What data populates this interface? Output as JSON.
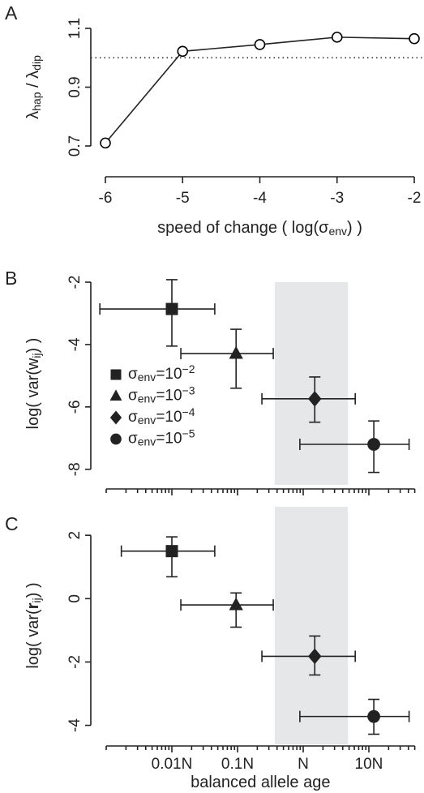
{
  "chart_data": [
    {
      "type": "line",
      "panel_label": "A",
      "x": [
        -6,
        -5,
        -4,
        -3,
        -2
      ],
      "values": [
        0.71,
        1.022,
        1.045,
        1.07,
        1.065
      ],
      "color": "#000000",
      "xlim": [
        -6,
        -2
      ],
      "xticks": [
        -6,
        -5,
        -4,
        -3,
        -2
      ],
      "ylim": [
        0.66,
        1.14
      ],
      "yticks": [
        0.7,
        0.9,
        1.1
      ],
      "reference_line": 1,
      "xlabel": [
        "speed of change ( log(σ",
        "env",
        ") )"
      ],
      "ylabel": [
        "λ",
        "hap",
        " / λ",
        "dip"
      ]
    },
    {
      "type": "scatter",
      "panel_label": "B",
      "log_x": true,
      "xlim": [
        0.001,
        50
      ],
      "xticks": [
        0.01,
        0.1,
        1,
        10
      ],
      "xminor_ticks": [
        0.001,
        0.002,
        0.003,
        0.004,
        0.005,
        0.006,
        0.007,
        0.008,
        0.009,
        0.02,
        0.03,
        0.04,
        0.05,
        0.06,
        0.07,
        0.08,
        0.09,
        0.2,
        0.3,
        0.4,
        0.5,
        0.6,
        0.7,
        0.8,
        0.9,
        2,
        3,
        4,
        5,
        6,
        7,
        8,
        9,
        20,
        30,
        40,
        50
      ],
      "ylim": [
        -8.5,
        -2
      ],
      "yticks": [
        -2,
        -4,
        -6,
        -8
      ],
      "shaded_region": [
        0.37,
        4.8
      ],
      "shaded_color": "#e6e7e8",
      "legend": "left",
      "ylabel": [
        "log( var(w",
        "ij",
        ") )"
      ],
      "series": [
        {
          "name": [
            "σ",
            "env",
            "=10",
            "−2"
          ],
          "marker": "square",
          "color": "#222222",
          "x": [
            0.01
          ],
          "x_low": [
            0.0008
          ],
          "x_high": [
            0.045
          ],
          "values": [
            -2.86
          ],
          "y_low": [
            -4.05
          ],
          "y_high": [
            -1.92
          ]
        },
        {
          "name": [
            "σ",
            "env",
            "=10",
            "−3"
          ],
          "marker": "triangle",
          "color": "#222222",
          "x": [
            0.095
          ],
          "x_low": [
            0.0137
          ],
          "x_high": [
            0.35
          ],
          "values": [
            -4.29
          ],
          "y_low": [
            -5.4
          ],
          "y_high": [
            -3.51
          ]
        },
        {
          "name": [
            "σ",
            "env",
            "=10",
            "−4"
          ],
          "marker": "diamond",
          "color": "#222222",
          "x": [
            1.5
          ],
          "x_low": [
            0.235
          ],
          "x_high": [
            6.2
          ],
          "values": [
            -5.74
          ],
          "y_low": [
            -6.49
          ],
          "y_high": [
            -5.04
          ]
        },
        {
          "name": [
            "σ",
            "env",
            "=10",
            "−5"
          ],
          "marker": "circle",
          "color": "#222222",
          "x": [
            11.9
          ],
          "x_low": [
            0.89
          ],
          "x_high": [
            41
          ],
          "values": [
            -7.2
          ],
          "y_low": [
            -8.1
          ],
          "y_high": [
            -6.45
          ]
        }
      ]
    },
    {
      "type": "scatter",
      "panel_label": "C",
      "log_x": true,
      "xlim": [
        0.001,
        50
      ],
      "xticks": [
        {
          "value": 0.01,
          "label": "0.01N"
        },
        {
          "value": 0.1,
          "label": "0.1N"
        },
        {
          "value": 1,
          "label": "N"
        },
        {
          "value": 10,
          "label": "10N"
        }
      ],
      "xminor_ticks": [
        0.001,
        0.002,
        0.003,
        0.004,
        0.005,
        0.006,
        0.007,
        0.008,
        0.009,
        0.02,
        0.03,
        0.04,
        0.05,
        0.06,
        0.07,
        0.08,
        0.09,
        0.2,
        0.3,
        0.4,
        0.5,
        0.6,
        0.7,
        0.8,
        0.9,
        2,
        3,
        4,
        5,
        6,
        7,
        8,
        9,
        20,
        30,
        40,
        50
      ],
      "ylim": [
        -4.6,
        2.9
      ],
      "yticks": [
        2,
        0,
        -2,
        -4
      ],
      "shaded_region": [
        0.37,
        4.8
      ],
      "shaded_color": "#e6e7e8",
      "xlabel": [
        "balanced allele age"
      ],
      "ylabel": [
        "log( var(",
        "r",
        "ij",
        ") )"
      ],
      "series": [
        {
          "marker": "square",
          "color": "#222222",
          "x": [
            0.01
          ],
          "x_low": [
            0.0017
          ],
          "x_high": [
            0.045
          ],
          "values": [
            1.5
          ],
          "y_low": [
            0.69
          ],
          "y_high": [
            1.95
          ]
        },
        {
          "marker": "triangle",
          "color": "#222222",
          "x": [
            0.095
          ],
          "x_low": [
            0.0137
          ],
          "x_high": [
            0.35
          ],
          "values": [
            -0.2
          ],
          "y_low": [
            -0.9
          ],
          "y_high": [
            0.18
          ]
        },
        {
          "marker": "diamond",
          "color": "#222222",
          "x": [
            1.5
          ],
          "x_low": [
            0.235
          ],
          "x_high": [
            6.2
          ],
          "values": [
            -1.82
          ],
          "y_low": [
            -2.41
          ],
          "y_high": [
            -1.18
          ]
        },
        {
          "marker": "circle",
          "color": "#222222",
          "x": [
            11.9
          ],
          "x_low": [
            0.89
          ],
          "x_high": [
            41
          ],
          "values": [
            -3.72
          ],
          "y_low": [
            -4.28
          ],
          "y_high": [
            -3.18
          ]
        }
      ]
    }
  ]
}
